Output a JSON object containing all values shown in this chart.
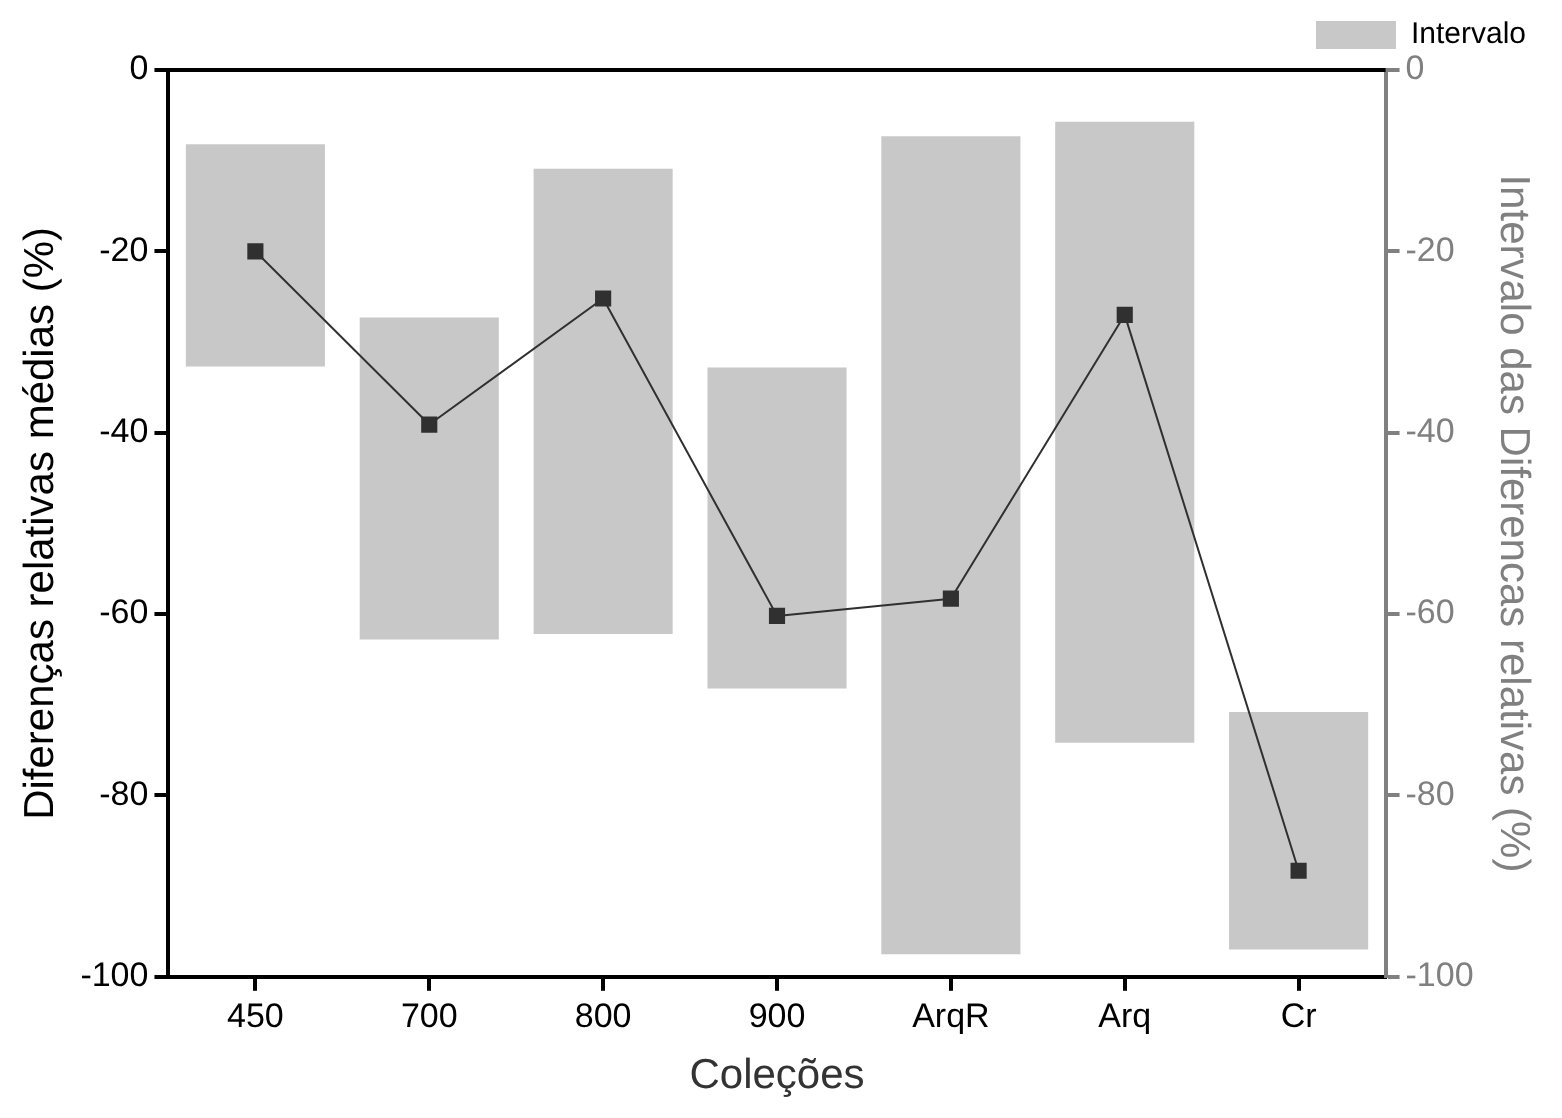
{
  "chart_data": {
    "type": "bar",
    "xlabel": "Coleções",
    "ylabel": "Diferenças relativas médias (%)",
    "y2label": "Intervalo das Diferencas relativas (%)",
    "categories": [
      "450",
      "700",
      "800",
      "900",
      "ArqR",
      "Arq",
      "Cr"
    ],
    "series": [
      {
        "name": "Intervalo",
        "color": "#c8c8c8",
        "base": [
          -32.7,
          -62.8,
          -62.2,
          -68.2,
          -97.5,
          -74.2,
          -97
        ],
        "values": [
          24.5,
          35.5,
          51.3,
          35.4,
          90.2,
          68.5,
          26.2
        ]
      },
      {
        "type": "line",
        "color": "#303030",
        "values": [
          -20.0,
          -39.1,
          -25.2,
          -60.2,
          -58.3,
          -27.0,
          -88.3
        ],
        "marker": "square",
        "line_style": "solid"
      }
    ],
    "ylim": [
      -100,
      0
    ],
    "yticks": [
      -100,
      -80,
      -60,
      -40,
      -20,
      0
    ],
    "y2lim": [
      -100,
      0
    ],
    "y2ticks": [
      -100,
      -80,
      -60,
      -40,
      -20,
      0
    ],
    "grid": false,
    "legend": "top right"
  }
}
